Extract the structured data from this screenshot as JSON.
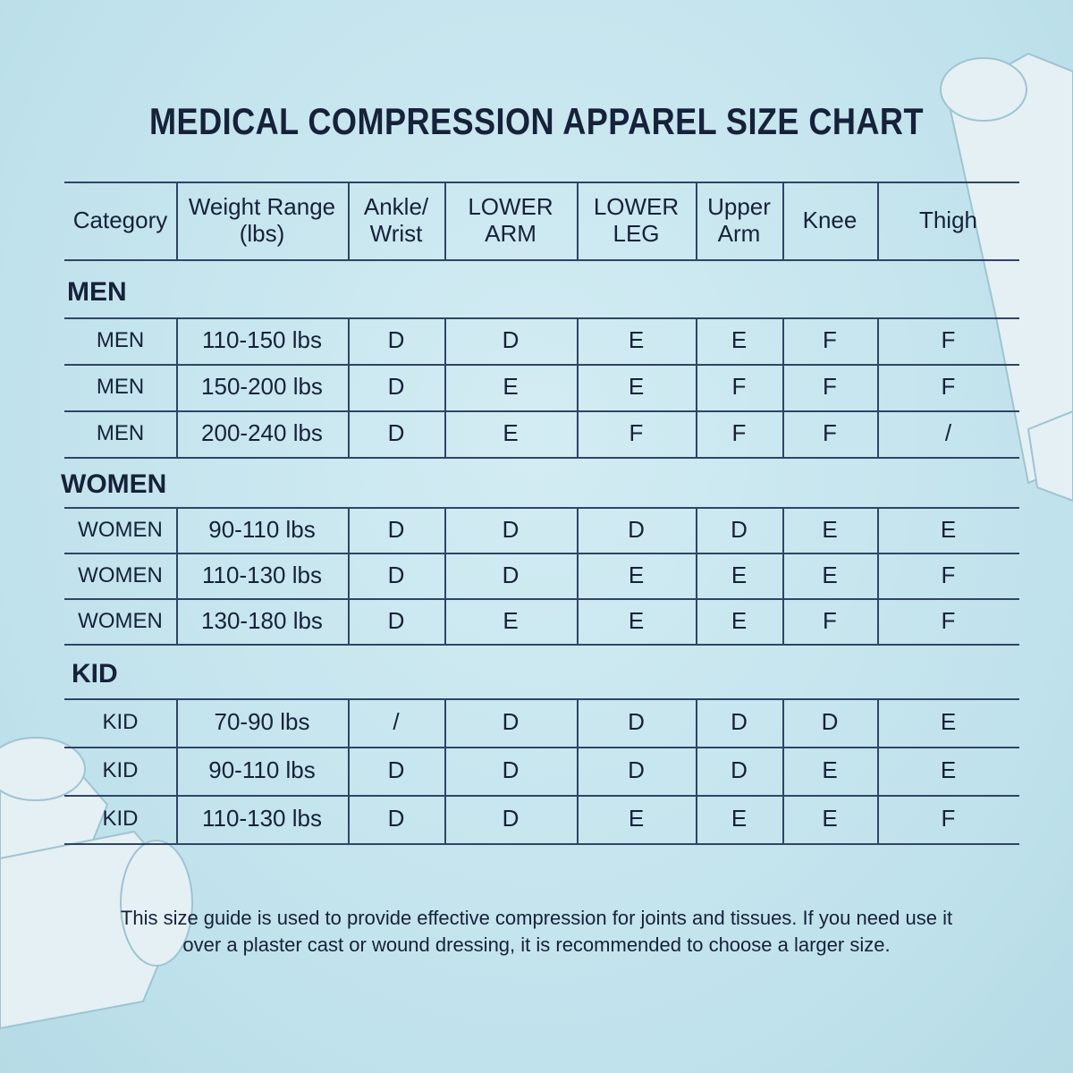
{
  "title": "MEDICAL COMPRESSION APPAREL SIZE CHART",
  "table": {
    "headers": [
      "Category",
      "Weight Range\n(lbs)",
      "Ankle/\nWrist",
      "LOWER\nARM",
      "LOWER\nLEG",
      "Upper\nArm",
      "Knee",
      "Thigh"
    ],
    "groups": [
      {
        "label": "MEN",
        "rows": [
          [
            "MEN",
            "110-150 lbs",
            "D",
            "D",
            "E",
            "E",
            "F",
            "F"
          ],
          [
            "MEN",
            "150-200 lbs",
            "D",
            "E",
            "E",
            "F",
            "F",
            "F"
          ],
          [
            "MEN",
            "200-240 lbs",
            "D",
            "E",
            "F",
            "F",
            "F",
            "/"
          ]
        ]
      },
      {
        "label": "WOMEN",
        "rows": [
          [
            "WOMEN",
            "90-110 lbs",
            "D",
            "D",
            "D",
            "D",
            "E",
            "E"
          ],
          [
            "WOMEN",
            "110-130 lbs",
            "D",
            "D",
            "E",
            "E",
            "E",
            "F"
          ],
          [
            "WOMEN",
            "130-180 lbs",
            "D",
            "E",
            "E",
            "E",
            "F",
            "F"
          ]
        ]
      },
      {
        "label": "KID",
        "rows": [
          [
            "KID",
            "70-90 lbs",
            "/",
            "D",
            "D",
            "D",
            "D",
            "E"
          ],
          [
            "KID",
            "90-110 lbs",
            "D",
            "D",
            "D",
            "D",
            "E",
            "E"
          ],
          [
            "KID",
            "110-130 lbs",
            "D",
            "D",
            "E",
            "E",
            "E",
            "F"
          ]
        ]
      }
    ]
  },
  "note": "This size guide is used to provide effective compression for joints and tissues. If you need use it over a plaster cast or wound dressing, it is recommended to choose a larger size."
}
